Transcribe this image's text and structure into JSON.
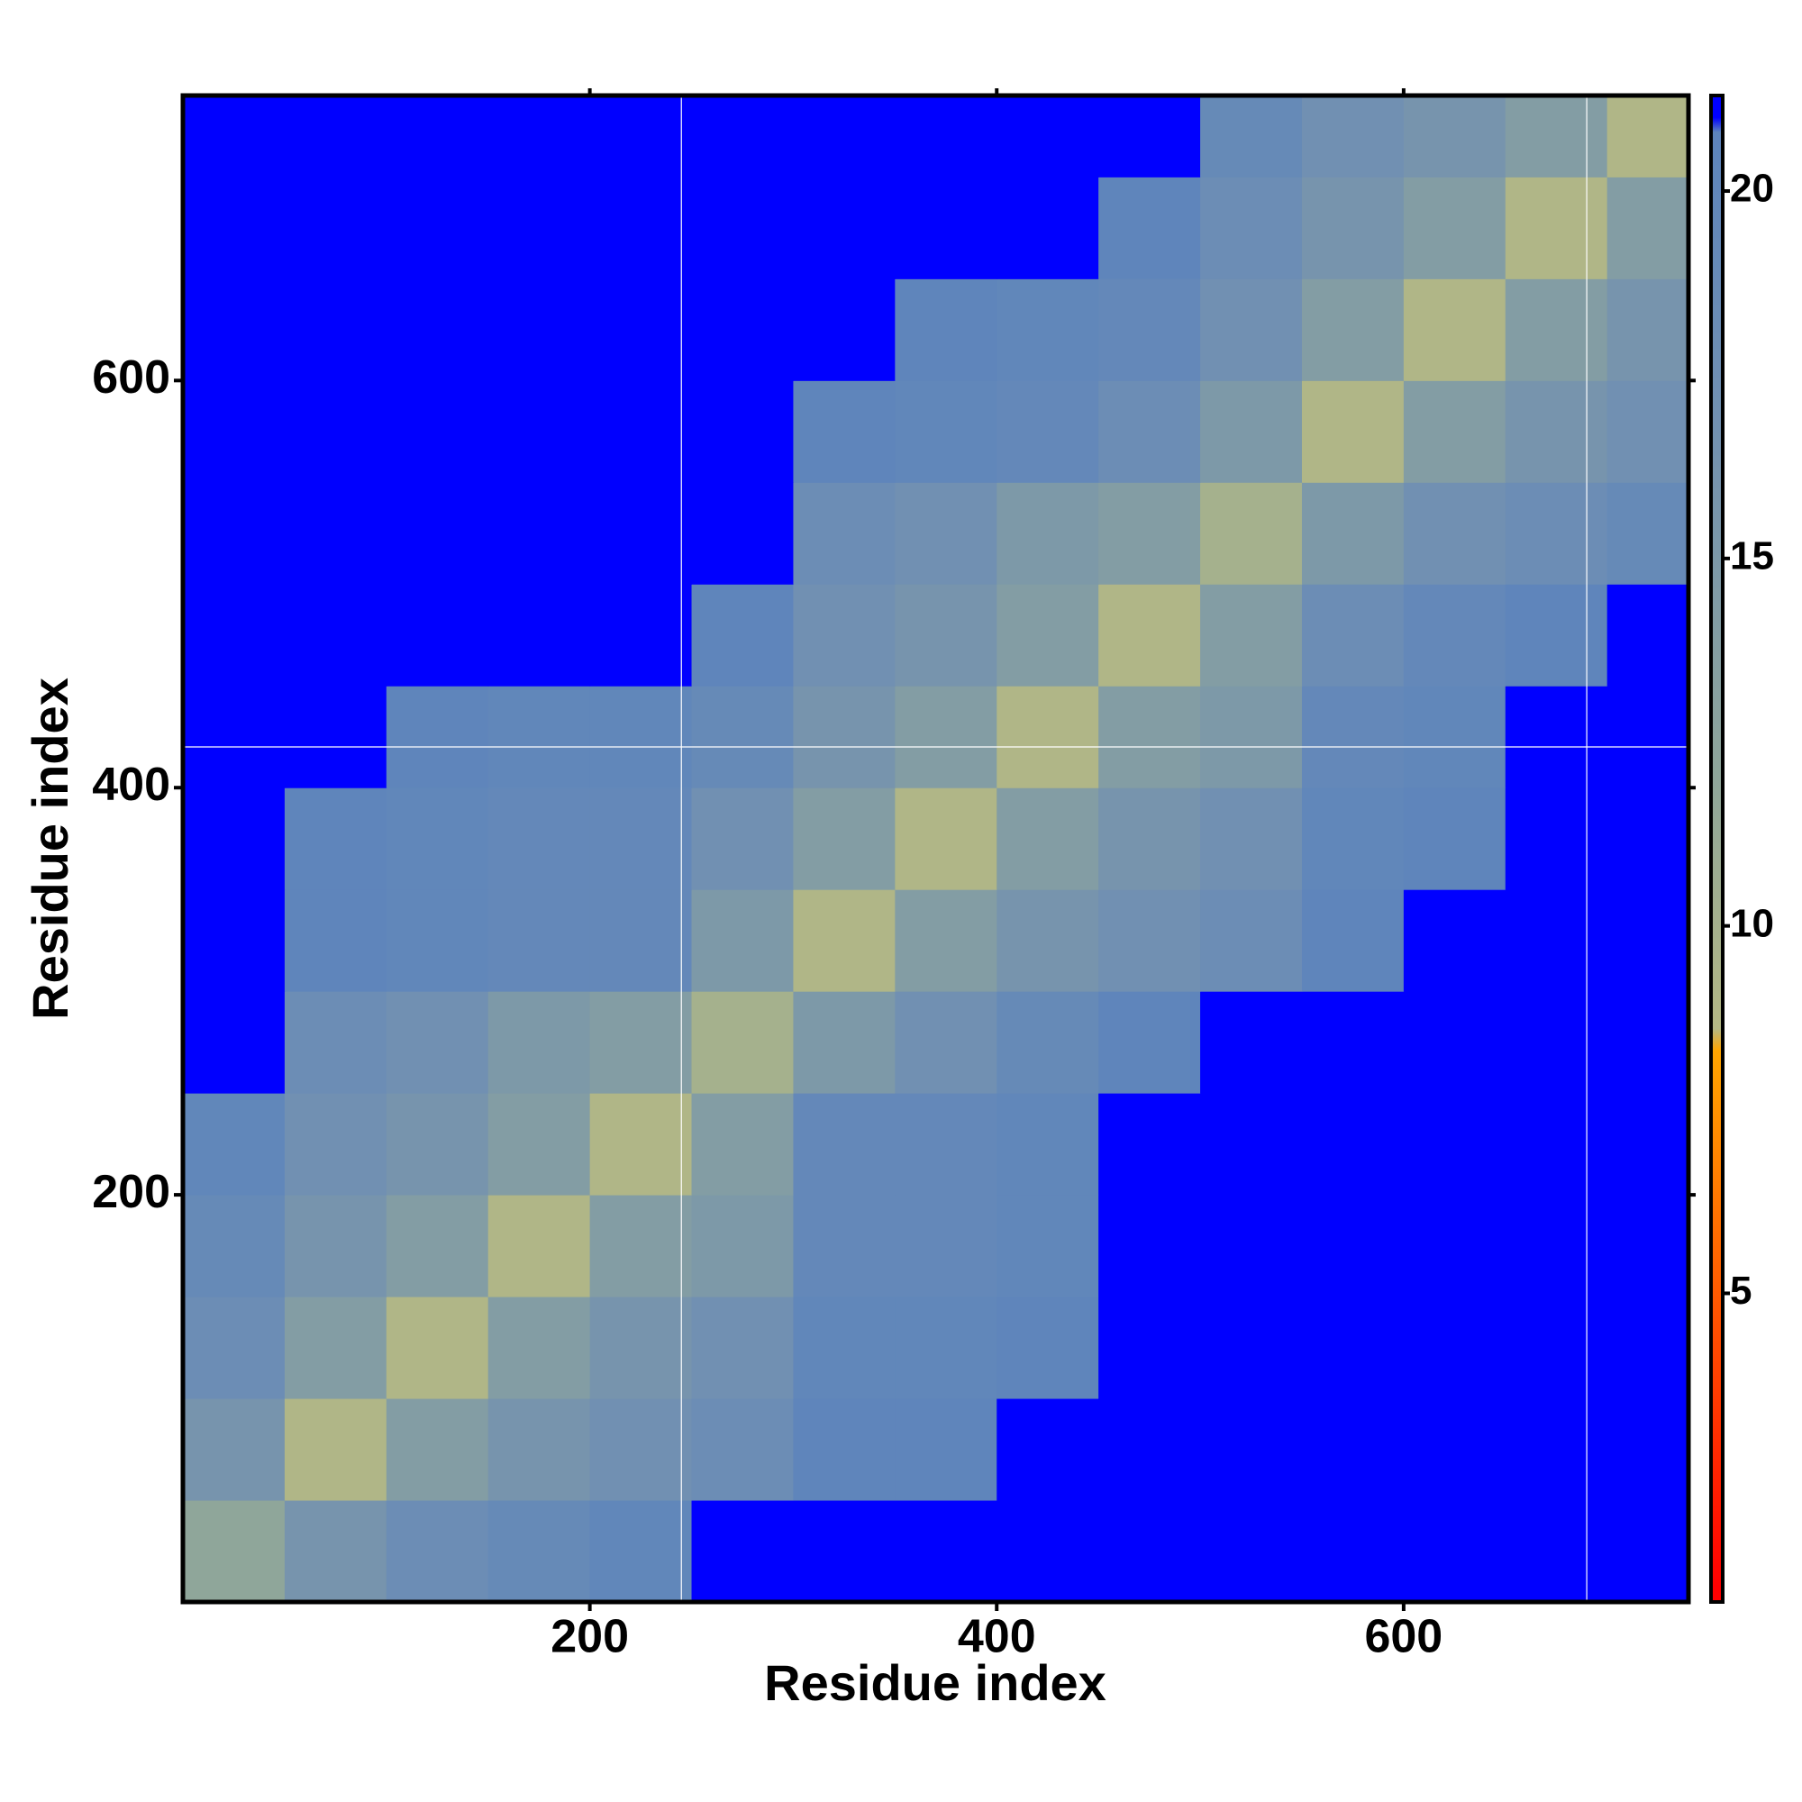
{
  "chart_data": {
    "type": "heatmap",
    "xlabel": "Residue index",
    "ylabel": "Residue index",
    "xlim": [
      0,
      740
    ],
    "ylim": [
      0,
      740
    ],
    "xticks": [
      200,
      400,
      600
    ],
    "yticks": [
      200,
      400,
      600
    ],
    "bins": [
      0,
      50,
      100,
      150,
      200,
      250,
      300,
      350,
      400,
      450,
      500,
      550,
      600,
      650,
      700,
      740
    ],
    "matrix": [
      [
        12,
        16,
        18,
        19,
        20,
        21,
        21,
        21,
        21,
        21,
        21,
        21,
        21,
        21,
        21
      ],
      [
        16,
        9,
        14,
        16,
        17,
        18,
        20.5,
        20.5,
        21,
        21,
        21,
        21,
        21,
        21,
        21
      ],
      [
        18,
        14,
        9,
        14,
        16,
        17,
        20,
        20,
        20.5,
        21,
        21,
        21,
        21,
        21,
        21
      ],
      [
        19,
        16,
        14,
        9,
        14,
        15,
        19.5,
        19.5,
        20,
        21,
        21,
        21,
        21,
        21,
        21
      ],
      [
        20,
        17,
        16,
        14,
        9,
        14,
        19.5,
        19.5,
        20,
        21,
        21,
        21,
        21,
        21,
        21
      ],
      [
        21,
        18,
        17,
        15,
        14,
        10,
        15,
        17,
        19,
        20.5,
        21,
        21,
        21,
        21,
        21
      ],
      [
        21,
        20.5,
        20,
        19.5,
        19.5,
        15,
        9,
        14,
        16,
        17,
        18,
        20.5,
        21,
        21,
        21
      ],
      [
        21,
        20.5,
        20,
        19.5,
        19.5,
        17,
        14,
        9,
        14,
        16,
        17,
        20,
        20.5,
        21,
        21
      ],
      [
        21,
        21,
        20.5,
        20,
        20,
        19,
        16,
        14,
        9,
        14,
        15,
        19.5,
        20,
        21,
        21
      ],
      [
        21,
        21,
        21,
        21,
        21,
        20.5,
        17,
        16,
        14,
        9,
        14,
        18,
        19.5,
        20.5,
        21
      ],
      [
        21,
        21,
        21,
        21,
        21,
        21,
        18,
        17,
        15,
        14,
        10,
        15,
        17,
        18,
        19
      ],
      [
        21,
        21,
        21,
        21,
        21,
        21,
        20.5,
        20,
        19.5,
        18,
        15,
        9,
        14,
        16,
        17
      ],
      [
        21,
        21,
        21,
        21,
        21,
        21,
        21,
        20.5,
        20,
        19.5,
        17,
        14,
        9,
        14,
        16
      ],
      [
        21,
        21,
        21,
        21,
        21,
        21,
        21,
        21,
        21,
        20.5,
        18,
        16,
        14,
        9,
        14
      ],
      [
        21,
        21,
        21,
        21,
        21,
        21,
        21,
        21,
        21,
        21,
        19,
        17,
        16,
        14,
        9
      ]
    ],
    "colorscale": [
      [
        1,
        "#ff0000"
      ],
      [
        5,
        "#ff5a00"
      ],
      [
        8.3,
        "#ffa500"
      ],
      [
        8.6,
        "#b4b884"
      ],
      [
        12,
        "#8fa69a"
      ],
      [
        17,
        "#7190b2"
      ],
      [
        20.8,
        "#5d84bc"
      ],
      [
        21,
        "#0000ff"
      ]
    ],
    "colorbar_lim": [
      0.8,
      21.3
    ],
    "colorbar_ticks": [
      5,
      10,
      15,
      20
    ],
    "vlines": [
      245,
      690
    ],
    "hlines": [
      420
    ],
    "line_color": "#ffffff"
  }
}
